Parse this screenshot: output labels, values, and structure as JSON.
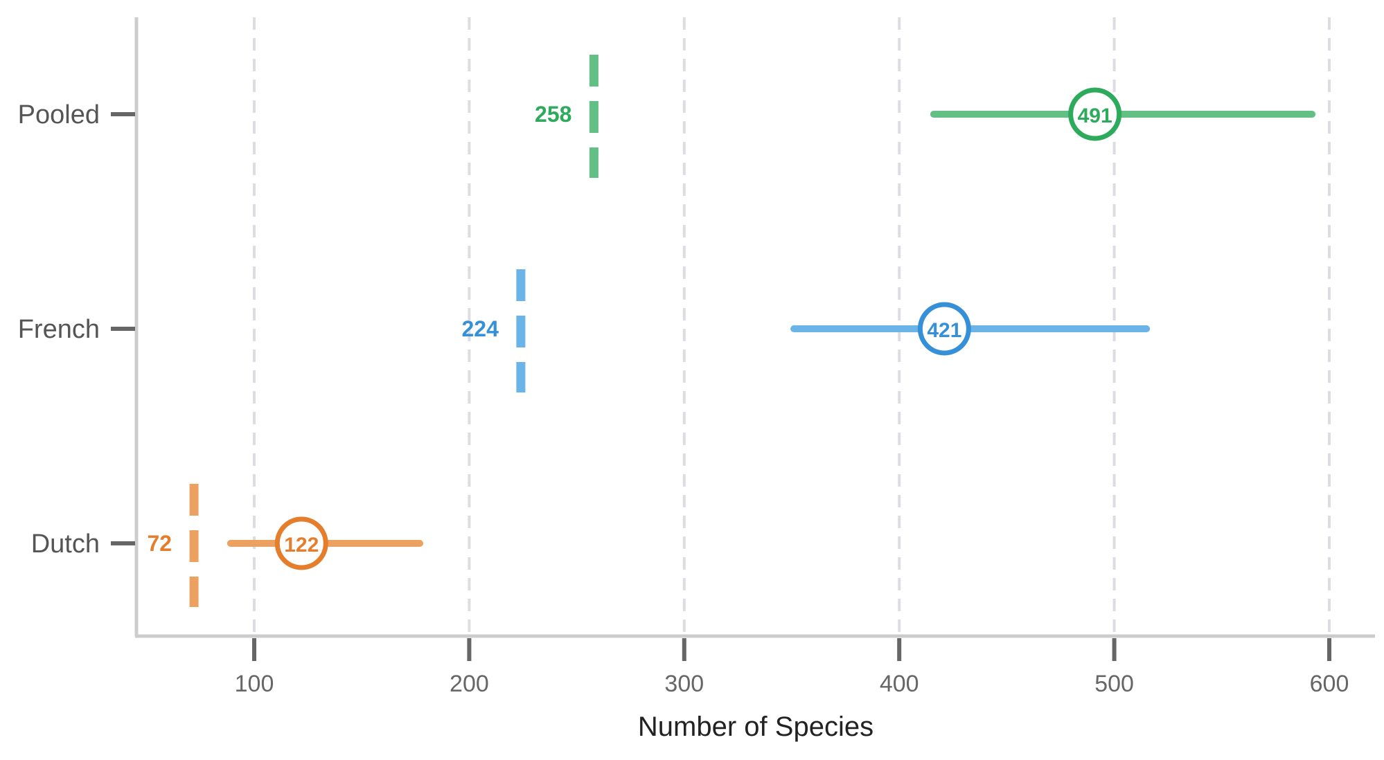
{
  "chart_data": {
    "type": "errorbar",
    "title": "",
    "xlabel": "Number of Species",
    "ylabel": "",
    "xlim": [
      45,
      615
    ],
    "xticks": [
      100,
      200,
      300,
      400,
      500,
      600
    ],
    "xtick_labels": [
      "100",
      "200",
      "300",
      "400",
      "500",
      "600"
    ],
    "grid": "vertical-dashed",
    "categories": [
      "Pooled",
      "French",
      "Dutch"
    ],
    "series": [
      {
        "category": "Pooled",
        "observed": 258,
        "observed_label": "258",
        "estimate": 491,
        "estimate_label": "491",
        "lower": 416,
        "upper": 592,
        "color": "#2eaa5c",
        "line_color": "#63c085"
      },
      {
        "category": "French",
        "observed": 224,
        "observed_label": "224",
        "estimate": 421,
        "estimate_label": "421",
        "lower": 351,
        "upper": 515,
        "color": "#3590d8",
        "line_color": "#6ab4e8"
      },
      {
        "category": "Dutch",
        "observed": 72,
        "observed_label": "72",
        "estimate": 122,
        "estimate_label": "122",
        "lower": 89,
        "upper": 177,
        "color": "#e47e2c",
        "line_color": "#eca160"
      }
    ]
  }
}
